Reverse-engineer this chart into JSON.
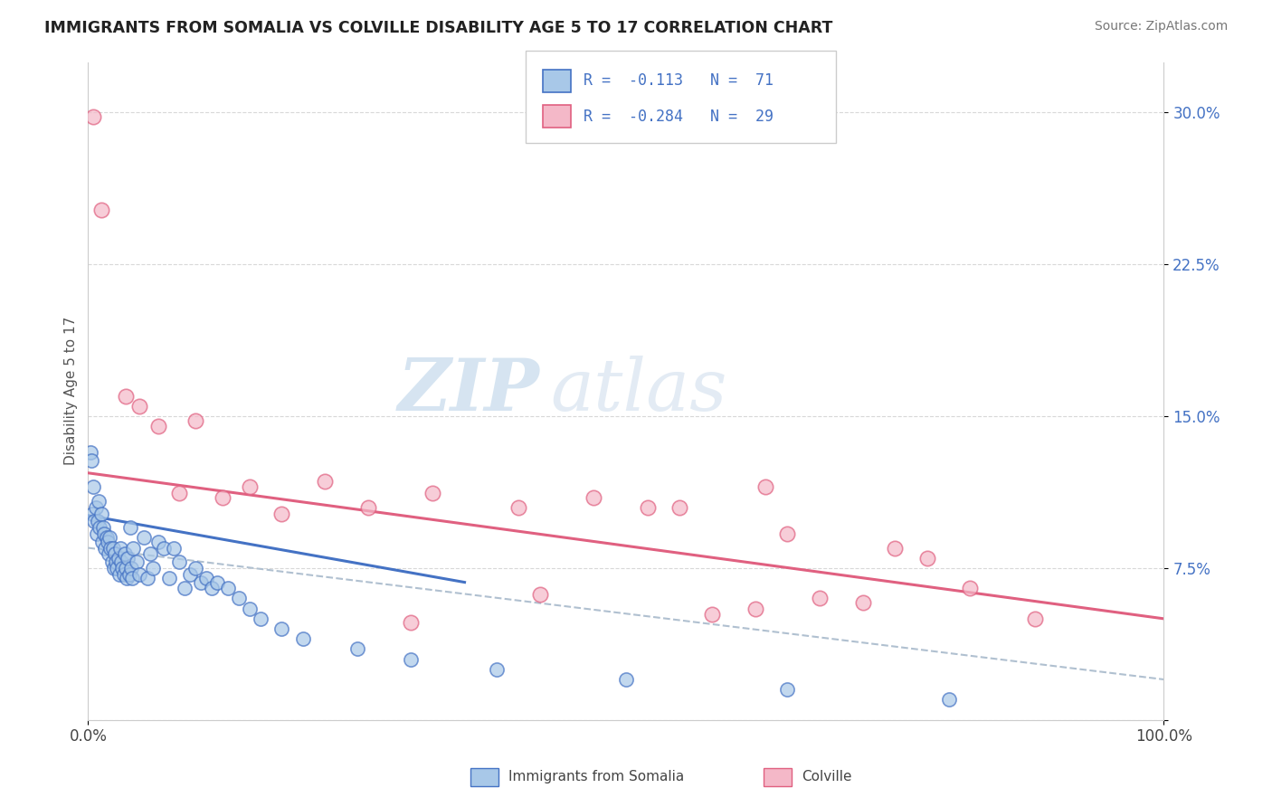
{
  "title": "IMMIGRANTS FROM SOMALIA VS COLVILLE DISABILITY AGE 5 TO 17 CORRELATION CHART",
  "source": "Source: ZipAtlas.com",
  "ylabel": "Disability Age 5 to 17",
  "xlim": [
    0.0,
    100.0
  ],
  "ylim": [
    0.0,
    32.5
  ],
  "yticks": [
    0.0,
    7.5,
    15.0,
    22.5,
    30.0
  ],
  "ytick_labels": [
    "",
    "7.5%",
    "15.0%",
    "22.5%",
    "30.0%"
  ],
  "xticks": [
    0.0,
    100.0
  ],
  "xtick_labels": [
    "0.0%",
    "100.0%"
  ],
  "blue_fill": "#a8c8e8",
  "blue_edge": "#4472c4",
  "pink_fill": "#f4b8c8",
  "pink_edge": "#e06080",
  "blue_line": "#4472c4",
  "pink_line": "#e06080",
  "dash_line": "#b0c0d0",
  "legend_text_color": "#4472c4",
  "watermark_color": "#c8d8ec",
  "background": "#ffffff",
  "grid_color": "#d8d8d8",
  "blue_trend_x0": 0.0,
  "blue_trend_y0": 10.1,
  "blue_trend_x1": 35.0,
  "blue_trend_y1": 6.8,
  "pink_trend_x0": 0.0,
  "pink_trend_y0": 12.2,
  "pink_trend_x1": 100.0,
  "pink_trend_y1": 5.0,
  "dash_trend_x0": 0.0,
  "dash_trend_y0": 8.5,
  "dash_trend_x1": 100.0,
  "dash_trend_y1": 2.0,
  "blue_x": [
    0.2,
    0.3,
    0.4,
    0.5,
    0.6,
    0.7,
    0.8,
    0.9,
    1.0,
    1.1,
    1.2,
    1.3,
    1.4,
    1.5,
    1.6,
    1.7,
    1.8,
    1.9,
    2.0,
    2.1,
    2.2,
    2.3,
    2.4,
    2.5,
    2.6,
    2.7,
    2.8,
    2.9,
    3.0,
    3.1,
    3.2,
    3.3,
    3.4,
    3.5,
    3.6,
    3.7,
    3.8,
    3.9,
    4.0,
    4.1,
    4.2,
    4.5,
    4.8,
    5.2,
    5.5,
    5.8,
    6.0,
    6.5,
    7.0,
    7.5,
    8.0,
    8.5,
    9.0,
    9.5,
    10.0,
    10.5,
    11.0,
    11.5,
    12.0,
    13.0,
    14.0,
    15.0,
    16.0,
    18.0,
    20.0,
    25.0,
    30.0,
    38.0,
    50.0,
    65.0,
    80.0
  ],
  "blue_y": [
    13.2,
    12.8,
    10.2,
    11.5,
    9.8,
    10.5,
    9.2,
    9.8,
    10.8,
    9.5,
    10.2,
    8.8,
    9.5,
    9.2,
    8.5,
    9.0,
    8.8,
    8.2,
    9.0,
    8.5,
    7.8,
    8.5,
    7.5,
    8.2,
    7.8,
    7.5,
    8.0,
    7.2,
    8.5,
    7.8,
    7.5,
    7.2,
    8.2,
    7.5,
    7.0,
    8.0,
    7.2,
    9.5,
    7.5,
    7.0,
    8.5,
    7.8,
    7.2,
    9.0,
    7.0,
    8.2,
    7.5,
    8.8,
    8.5,
    7.0,
    8.5,
    7.8,
    6.5,
    7.2,
    7.5,
    6.8,
    7.0,
    6.5,
    6.8,
    6.5,
    6.0,
    5.5,
    5.0,
    4.5,
    4.0,
    3.5,
    3.0,
    2.5,
    2.0,
    1.5,
    1.0
  ],
  "pink_x": [
    0.5,
    1.2,
    3.5,
    4.8,
    6.5,
    8.5,
    10.0,
    12.5,
    15.0,
    18.0,
    22.0,
    26.0,
    32.0,
    40.0,
    47.0,
    55.0,
    62.0,
    65.0,
    68.0,
    72.0,
    75.0,
    78.0,
    82.0,
    52.0,
    58.0,
    88.0,
    63.0,
    42.0,
    30.0
  ],
  "pink_y": [
    29.8,
    25.2,
    16.0,
    15.5,
    14.5,
    11.2,
    14.8,
    11.0,
    11.5,
    10.2,
    11.8,
    10.5,
    11.2,
    10.5,
    11.0,
    10.5,
    5.5,
    9.2,
    6.0,
    5.8,
    8.5,
    8.0,
    6.5,
    10.5,
    5.2,
    5.0,
    11.5,
    6.2,
    4.8
  ],
  "legend_label_blue": "Immigrants from Somalia",
  "legend_label_pink": "Colville"
}
